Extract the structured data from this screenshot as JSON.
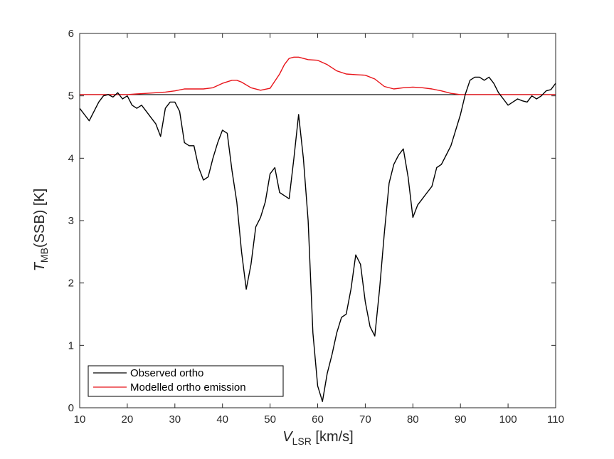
{
  "chart_data": {
    "type": "line",
    "title": "",
    "xlabel": {
      "main": "V",
      "sub": "LSR",
      "unit": " [km/s]"
    },
    "ylabel": {
      "main": "T",
      "sub": "MB",
      "unit": "(SSB) [K]"
    },
    "xlim": [
      10,
      110
    ],
    "ylim": [
      0,
      6
    ],
    "xticks": [
      10,
      20,
      30,
      40,
      50,
      60,
      70,
      80,
      90,
      100,
      110
    ],
    "yticks": [
      0,
      1,
      2,
      3,
      4,
      5,
      6
    ],
    "grid": false,
    "legend_position": "bottom-left",
    "baseline": {
      "y": 5.02,
      "color": "#000000"
    },
    "series": [
      {
        "name": "Observed ortho",
        "color": "#000000",
        "x": [
          10,
          11,
          12,
          13,
          14,
          15,
          16,
          17,
          18,
          19,
          20,
          21,
          22,
          23,
          24,
          25,
          26,
          27,
          28,
          29,
          30,
          31,
          32,
          33,
          34,
          35,
          36,
          37,
          38,
          39,
          40,
          41,
          42,
          43,
          44,
          45,
          46,
          47,
          48,
          49,
          50,
          51,
          52,
          53,
          54,
          55,
          56,
          57,
          58,
          59,
          60,
          61,
          62,
          63,
          64,
          65,
          66,
          67,
          68,
          69,
          70,
          71,
          72,
          73,
          74,
          75,
          76,
          77,
          78,
          79,
          80,
          81,
          82,
          83,
          84,
          85,
          86,
          87,
          88,
          89,
          90,
          91,
          92,
          93,
          94,
          95,
          96,
          97,
          98,
          99,
          100,
          101,
          102,
          103,
          104,
          105,
          106,
          107,
          108,
          109,
          110
        ],
        "y": [
          4.8,
          4.7,
          4.6,
          4.75,
          4.9,
          5.0,
          5.02,
          4.98,
          5.05,
          4.95,
          5.0,
          4.85,
          4.8,
          4.85,
          4.75,
          4.65,
          4.55,
          4.35,
          4.8,
          4.9,
          4.9,
          4.75,
          4.25,
          4.2,
          4.2,
          3.85,
          3.65,
          3.7,
          4.0,
          4.25,
          4.45,
          4.4,
          3.8,
          3.3,
          2.5,
          1.9,
          2.3,
          2.9,
          3.05,
          3.3,
          3.75,
          3.85,
          3.45,
          3.4,
          3.35,
          4.0,
          4.7,
          4.0,
          3.0,
          1.2,
          0.35,
          0.1,
          0.55,
          0.85,
          1.2,
          1.45,
          1.5,
          1.9,
          2.45,
          2.3,
          1.7,
          1.3,
          1.15,
          1.9,
          2.8,
          3.6,
          3.9,
          4.05,
          4.15,
          3.7,
          3.05,
          3.25,
          3.35,
          3.45,
          3.55,
          3.85,
          3.9,
          4.05,
          4.2,
          4.45,
          4.7,
          5.02,
          5.25,
          5.3,
          5.3,
          5.25,
          5.3,
          5.2,
          5.05,
          4.95,
          4.85,
          4.9,
          4.95,
          4.92,
          4.9,
          5.0,
          4.95,
          5.0,
          5.08,
          5.1,
          5.2
        ]
      },
      {
        "name": "Modelled ortho emission",
        "color": "#e8141a",
        "x": [
          10,
          12,
          14,
          16,
          18,
          20,
          22,
          24,
          26,
          28,
          30,
          32,
          34,
          36,
          38,
          40,
          42,
          43,
          44,
          46,
          48,
          50,
          52,
          53,
          54,
          55,
          56,
          57,
          58,
          60,
          62,
          64,
          66,
          68,
          70,
          72,
          74,
          76,
          78,
          80,
          82,
          84,
          86,
          88,
          90,
          91,
          92,
          94,
          96,
          98,
          100,
          105,
          110
        ],
        "y": [
          5.02,
          5.02,
          5.02,
          5.02,
          5.02,
          5.02,
          5.03,
          5.04,
          5.05,
          5.06,
          5.08,
          5.11,
          5.11,
          5.11,
          5.13,
          5.2,
          5.25,
          5.25,
          5.22,
          5.13,
          5.09,
          5.12,
          5.35,
          5.5,
          5.6,
          5.62,
          5.62,
          5.6,
          5.58,
          5.57,
          5.5,
          5.4,
          5.35,
          5.34,
          5.33,
          5.27,
          5.15,
          5.11,
          5.13,
          5.14,
          5.13,
          5.11,
          5.08,
          5.04,
          5.02,
          5.02,
          5.02,
          5.02,
          5.02,
          5.02,
          5.02,
          5.02,
          5.02
        ]
      }
    ]
  }
}
